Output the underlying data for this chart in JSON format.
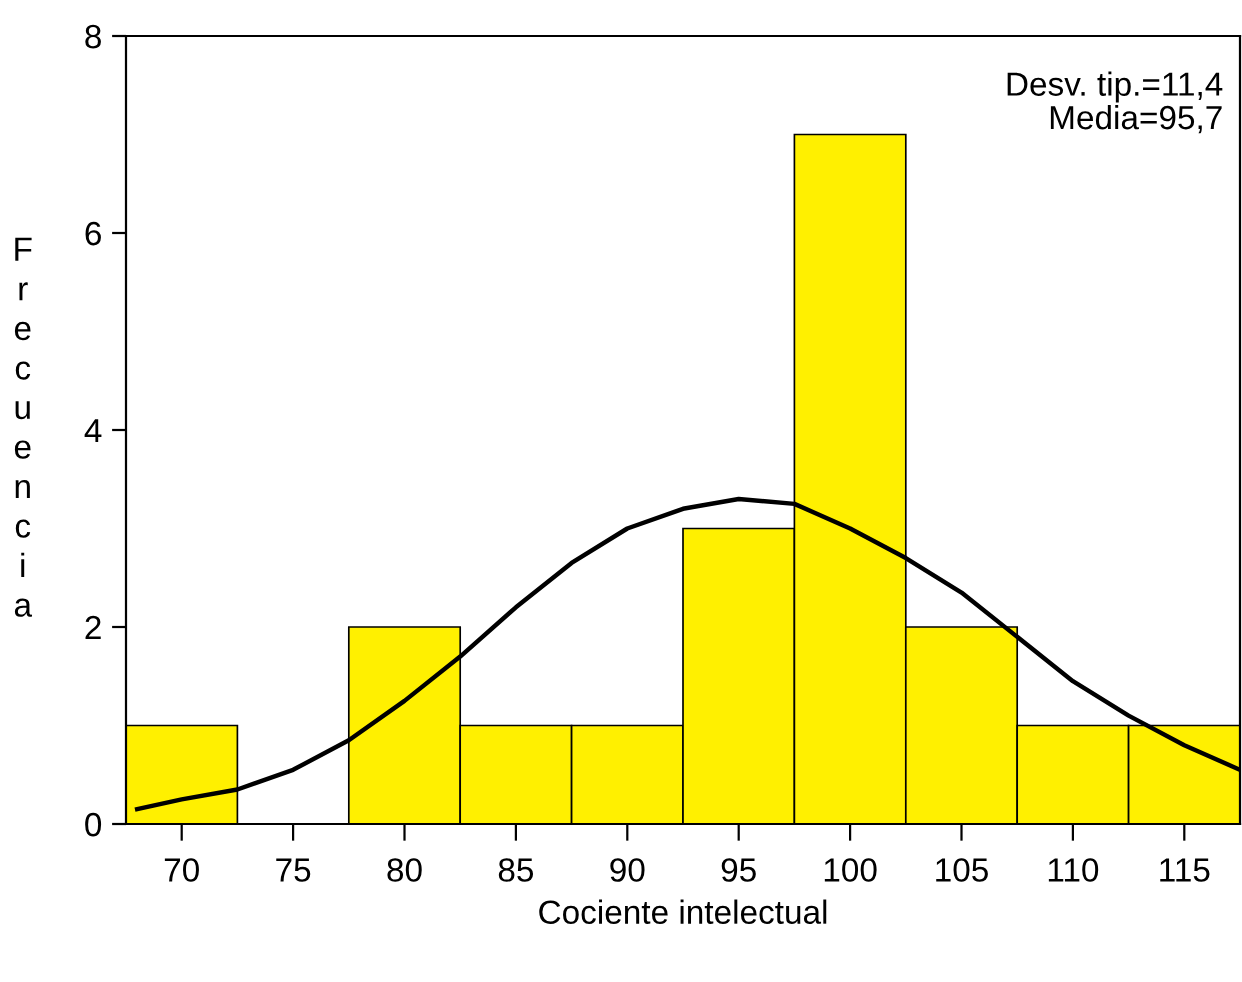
{
  "chart_data": {
    "type": "histogram",
    "xlabel": "Cociente intelectual",
    "ylabel": "Frecuencia",
    "bins": [
      67.5,
      72.5,
      77.5,
      82.5,
      87.5,
      92.5,
      97.5,
      102.5,
      107.5,
      112.5,
      117.5
    ],
    "values": [
      1,
      0,
      2,
      1,
      1,
      3,
      7,
      2,
      1,
      1
    ],
    "color": "#fff000",
    "series": [
      {
        "type": "line",
        "color": "#000000",
        "x": [
          68,
          70,
          72.5,
          75,
          77.5,
          80,
          82.5,
          85,
          87.5,
          90,
          92.5,
          95,
          97.5,
          100,
          102.5,
          105,
          107.5,
          110,
          112.5,
          115,
          117.5
        ],
        "values": [
          0.15,
          0.25,
          0.35,
          0.55,
          0.85,
          1.25,
          1.7,
          2.2,
          2.65,
          3.0,
          3.2,
          3.3,
          3.25,
          3.0,
          2.7,
          2.35,
          1.9,
          1.45,
          1.1,
          0.8,
          0.55
        ]
      }
    ],
    "xlim": [
      67.5,
      117.5
    ],
    "xticks": [
      70,
      75,
      80,
      85,
      90,
      95,
      100,
      105,
      110,
      115
    ],
    "ylim": [
      0,
      8
    ],
    "yticks": [
      0,
      2,
      4,
      6,
      8
    ],
    "grid": false,
    "legend": false,
    "annotations": [
      "Desv. tip.=11,4",
      "Media=95,7"
    ]
  }
}
